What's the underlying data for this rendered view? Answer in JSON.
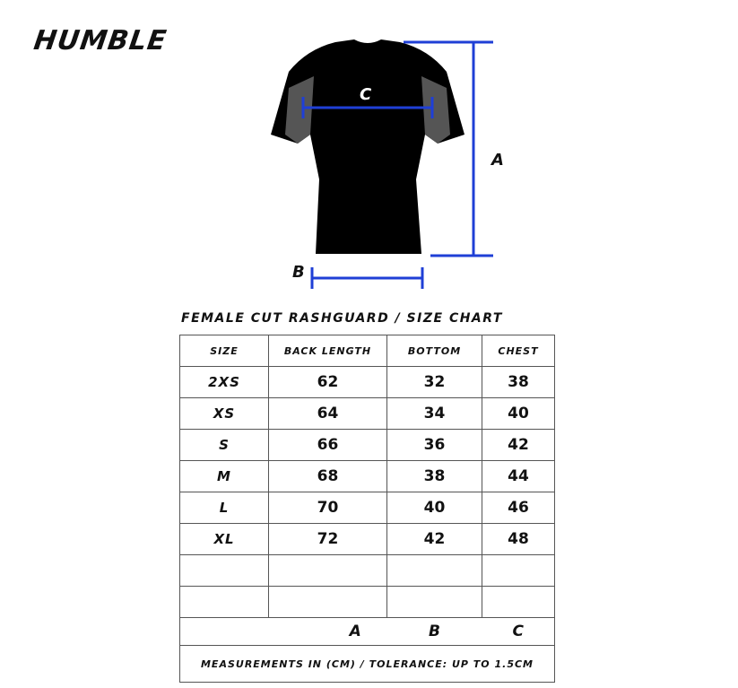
{
  "brand": "HUMBLE",
  "diagram": {
    "label_a": "A",
    "label_b": "B",
    "label_c": "C",
    "line_color": "#1f3fd6"
  },
  "chart_title": "FEMALE CUT RASHGUARD / SIZE CHART",
  "table": {
    "headers": [
      "SIZE",
      "BACK LENGTH",
      "BOTTOM",
      "CHEST"
    ],
    "rows": [
      [
        "2XS",
        "62",
        "32",
        "38"
      ],
      [
        "XS",
        "64",
        "34",
        "40"
      ],
      [
        "S",
        "66",
        "36",
        "42"
      ],
      [
        "M",
        "68",
        "38",
        "44"
      ],
      [
        "L",
        "70",
        "40",
        "46"
      ],
      [
        "XL",
        "72",
        "42",
        "48"
      ]
    ],
    "column_letters": [
      "",
      "A",
      "B",
      "C"
    ],
    "note": "MEASUREMENTS IN (CM) / TOLERANCE: UP TO 1.5CM"
  }
}
